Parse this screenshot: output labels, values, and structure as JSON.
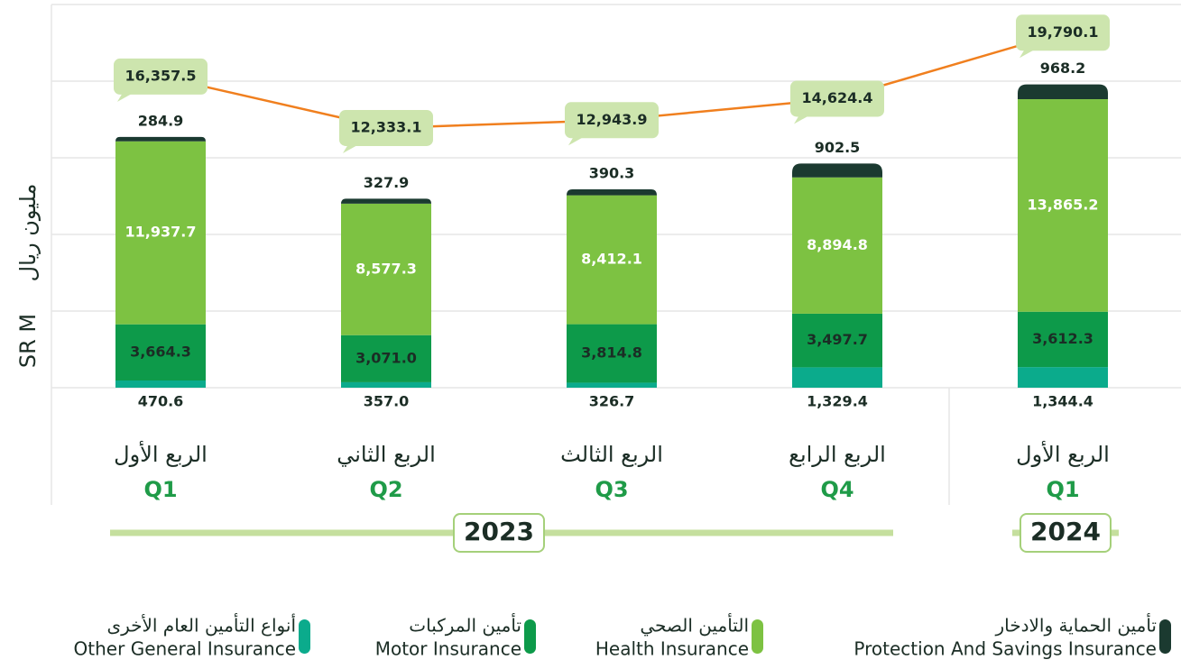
{
  "chart_data": {
    "type": "stacked_bar",
    "y_label": "SR M",
    "y_label_ar": "مليون ريال",
    "categories": [
      "Q1",
      "Q2",
      "Q3",
      "Q4",
      "Q1"
    ],
    "categories_ar": [
      "الربع الأول",
      "الربع الثاني",
      "الربع الثالث",
      "الربع الرابع",
      "الربع الأول"
    ],
    "x_groups": [
      {
        "label": "2023",
        "from": 0,
        "to": 3
      },
      {
        "label": "2024",
        "from": 4,
        "to": 4
      }
    ],
    "ylim": [
      0,
      25000
    ],
    "yticks": [
      0,
      5000,
      10000,
      15000,
      20000,
      25000
    ],
    "grid": true,
    "y2lim": [
      -8000,
      22000
    ],
    "series": [
      {
        "name": "Other General Insurance",
        "name_ar": "أنواع التأمين العام الأخرى",
        "color": "#0bab8c",
        "values": [
          470.6,
          357.0,
          326.7,
          1329.4,
          1344.4
        ],
        "value_labels": [
          "470.6",
          "357.0",
          "326.7",
          "1,329.4",
          "1,344.4"
        ]
      },
      {
        "name": "Motor Insurance",
        "name_ar": "تأمين المركبات",
        "color": "#0d9a4a",
        "values": [
          3664.3,
          3071.0,
          3814.8,
          3497.7,
          3612.3
        ],
        "value_labels": [
          "3,664.3",
          "3,071.0",
          "3,814.8",
          "3,497.7",
          "3,612.3"
        ]
      },
      {
        "name": "Health Insurance",
        "name_ar": "التأمين الصحي",
        "color": "#7dc242",
        "values": [
          11937.7,
          8577.3,
          8412.1,
          8894.8,
          13865.2
        ],
        "value_labels": [
          "11,937.7",
          "8,577.3",
          "8,412.1",
          "8,894.8",
          "13,865.2"
        ]
      },
      {
        "name": "Protection And Savings Insurance",
        "name_ar": "تأمين الحماية والادخار",
        "color": "#1b3a30",
        "values": [
          284.9,
          327.9,
          390.3,
          902.5,
          968.2
        ],
        "value_labels": [
          "284.9",
          "327.9",
          "390.3",
          "902.5",
          "968.2"
        ]
      }
    ],
    "totals": {
      "axis": "y2",
      "color": "#f07f1e",
      "values": [
        16357.5,
        12333.1,
        12943.9,
        14624.4,
        19790.1
      ],
      "value_labels": [
        "16,357.5",
        "12,333.1",
        "12,943.9",
        "14,624.4",
        "19,790.1"
      ]
    }
  }
}
